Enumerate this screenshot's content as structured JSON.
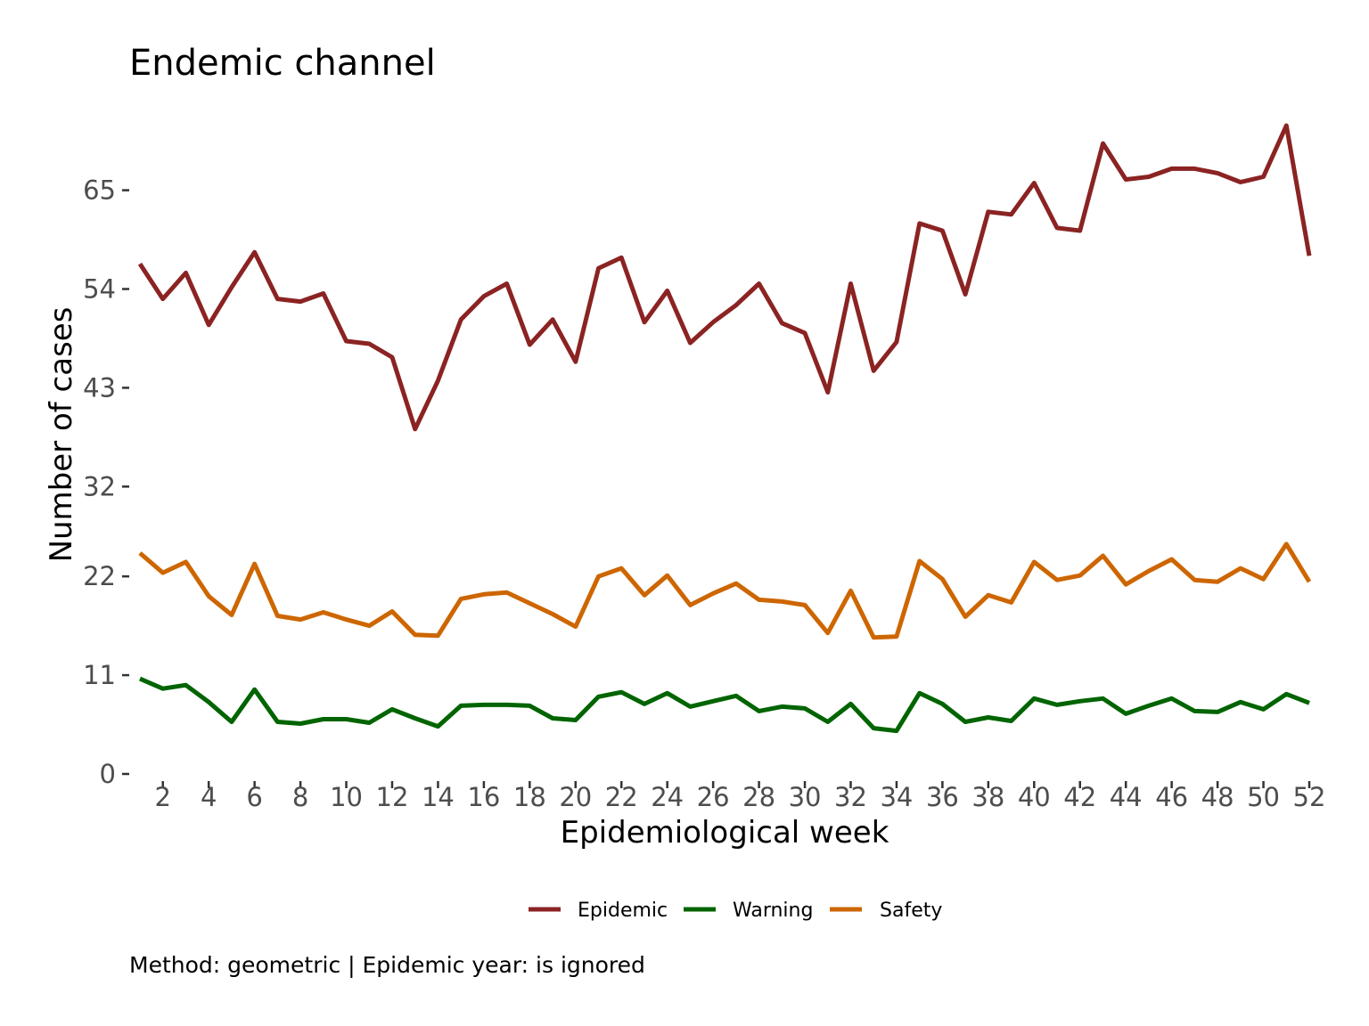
{
  "chart_data": {
    "type": "line",
    "title": "Endemic channel",
    "xlabel": "Epidemiological week",
    "ylabel": "Number of cases",
    "caption": "Method: geometric | Epidemic year:  is ignored",
    "x_ticks": [
      2,
      4,
      6,
      8,
      10,
      12,
      14,
      16,
      18,
      20,
      22,
      24,
      26,
      28,
      30,
      32,
      34,
      36,
      38,
      40,
      42,
      44,
      46,
      48,
      50,
      52
    ],
    "y_ticks": [
      0,
      11,
      22,
      32,
      43,
      54,
      65
    ],
    "xlim": [
      1,
      52
    ],
    "ylim": [
      0,
      72
    ],
    "grid": false,
    "legend_position": "bottom",
    "x": [
      1,
      2,
      3,
      4,
      5,
      6,
      7,
      8,
      9,
      10,
      11,
      12,
      13,
      14,
      15,
      16,
      17,
      18,
      19,
      20,
      21,
      22,
      23,
      24,
      25,
      26,
      27,
      28,
      29,
      30,
      31,
      32,
      33,
      34,
      35,
      36,
      37,
      38,
      39,
      40,
      41,
      42,
      43,
      44,
      45,
      46,
      47,
      48,
      49,
      50,
      51,
      52
    ],
    "series": [
      {
        "name": "Epidemic",
        "color": "#8B2323",
        "values": [
          56.8,
          52.9,
          55.8,
          50.0,
          54.2,
          58.1,
          52.9,
          52.6,
          53.5,
          48.2,
          47.9,
          46.4,
          38.4,
          43.8,
          50.6,
          53.2,
          54.6,
          47.8,
          50.6,
          45.9,
          56.3,
          57.5,
          50.3,
          53.8,
          48.0,
          50.3,
          52.2,
          54.6,
          50.2,
          49.1,
          42.5,
          54.6,
          44.9,
          48.1,
          61.3,
          60.5,
          53.4,
          62.6,
          62.3,
          65.8,
          60.8,
          60.5,
          70.2,
          66.2,
          66.5,
          67.4,
          67.4,
          66.9,
          65.9,
          66.5,
          72.2,
          57.7
        ]
      },
      {
        "name": "Warning",
        "color": "#006400",
        "values": [
          10.6,
          9.5,
          9.9,
          8.0,
          5.8,
          9.4,
          5.8,
          5.6,
          6.1,
          6.1,
          5.7,
          7.2,
          6.2,
          5.3,
          7.6,
          7.7,
          7.7,
          7.6,
          6.2,
          6.0,
          8.6,
          9.1,
          7.8,
          9.0,
          7.5,
          8.1,
          8.7,
          7.0,
          7.5,
          7.3,
          5.8,
          7.8,
          5.1,
          4.8,
          9.0,
          7.8,
          5.8,
          6.3,
          5.9,
          8.4,
          7.7,
          8.1,
          8.4,
          6.7,
          7.6,
          8.4,
          7.0,
          6.9,
          8.0,
          7.2,
          8.9,
          7.9
        ]
      },
      {
        "name": "Safety",
        "color": "#CD6600",
        "values": [
          24.6,
          22.4,
          23.6,
          19.8,
          17.7,
          23.4,
          17.6,
          17.2,
          18.0,
          17.2,
          16.5,
          18.1,
          15.5,
          15.4,
          19.5,
          20.0,
          20.2,
          19.0,
          17.8,
          16.4,
          22.0,
          22.9,
          19.9,
          22.1,
          18.8,
          20.1,
          21.2,
          19.4,
          19.2,
          18.8,
          15.7,
          20.4,
          15.2,
          15.3,
          23.7,
          21.7,
          17.5,
          19.9,
          19.1,
          23.6,
          21.6,
          22.1,
          24.3,
          21.1,
          22.6,
          23.9,
          21.6,
          21.4,
          22.9,
          21.7,
          25.6,
          21.4
        ]
      }
    ]
  }
}
